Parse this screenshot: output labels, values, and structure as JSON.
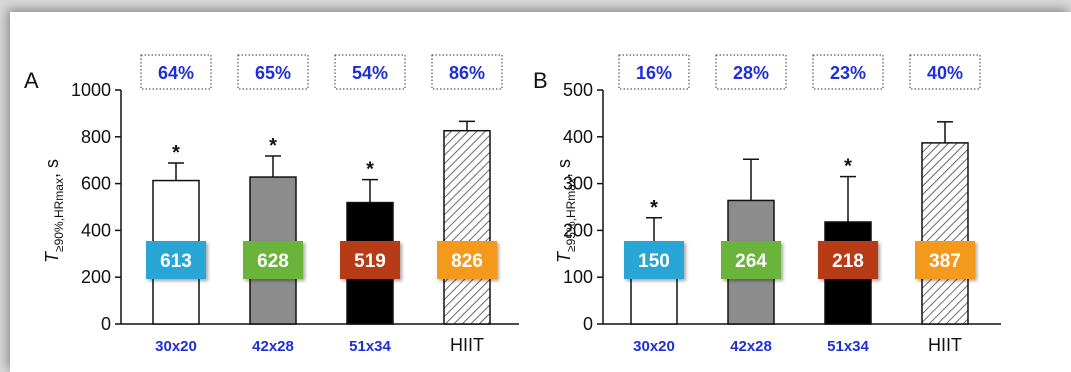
{
  "colors": {
    "accent_text": "#1f2fd6",
    "value_box_colors": [
      "#2aa6d6",
      "#6ab43a",
      "#b63a18",
      "#f39a1c"
    ],
    "bar_fills": [
      "#ffffff",
      "#8c8c8c",
      "#000000",
      "hatched"
    ]
  },
  "chart_data": [
    {
      "panel": "A",
      "type": "bar",
      "ylabel_main": "T",
      "ylabel_sub": "≥90%,HRmax",
      "ylabel_unit": ", s",
      "ylim": [
        0,
        1000
      ],
      "yticks": [
        0,
        200,
        400,
        600,
        800,
        1000
      ],
      "categories": [
        "30x20",
        "42x28",
        "51x34",
        "HIIT"
      ],
      "values": [
        613,
        628,
        519,
        826
      ],
      "errors": [
        75,
        90,
        98,
        40
      ],
      "value_labels": [
        "613",
        "628",
        "519",
        "826"
      ],
      "percentages": [
        "64%",
        "65%",
        "54%",
        "86%"
      ],
      "significant": [
        true,
        true,
        true,
        false
      ]
    },
    {
      "panel": "B",
      "type": "bar",
      "ylabel_main": "T",
      "ylabel_sub": "≥95%,HRmax",
      "ylabel_unit": ", s",
      "ylim": [
        0,
        500
      ],
      "yticks": [
        0,
        100,
        200,
        300,
        400,
        500
      ],
      "categories": [
        "30x20",
        "42x28",
        "51x34",
        "HIIT"
      ],
      "values": [
        150,
        264,
        218,
        387
      ],
      "errors": [
        77,
        88,
        97,
        45
      ],
      "value_labels": [
        "150",
        "264",
        "218",
        "387"
      ],
      "percentages": [
        "16%",
        "28%",
        "23%",
        "40%"
      ],
      "significant": [
        true,
        false,
        true,
        false
      ]
    }
  ]
}
